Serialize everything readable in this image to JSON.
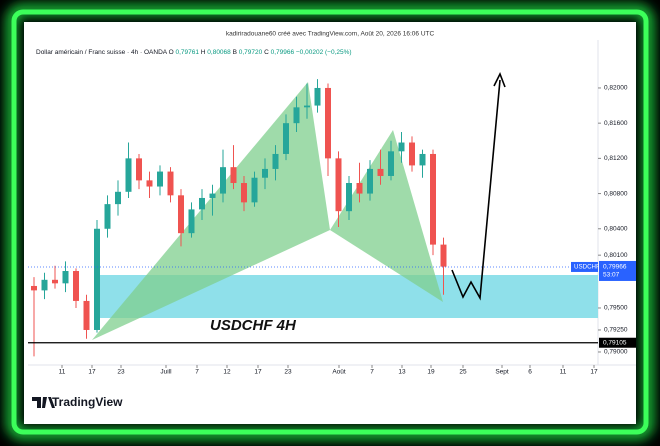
{
  "chart_data": {
    "type": "candlestick",
    "header": "kadiriradouane60 créé avec TradingView.com, Août 20, 2026 16:06 UTC",
    "legend": {
      "symbol": "Dollar américain / Franc suisse · 4h · OANDA",
      "ohlc": [
        {
          "key": "O",
          "value": "0,79761"
        },
        {
          "key": "H",
          "value": "0,80068"
        },
        {
          "key": "B",
          "value": "0,79720"
        },
        {
          "key": "C",
          "value": "0,79966"
        }
      ],
      "change": "−0,00202 (−0,25%)"
    },
    "annotation": "USDCHF 4H",
    "brand": "TradingView",
    "x": [
      0.8,
      2.9,
      5,
      7.1,
      9.2,
      11.3,
      13.4,
      15.5,
      17.6,
      19.7,
      21.8,
      23.9,
      26,
      28.1,
      30.2,
      32.3,
      34.4,
      36.5,
      38.6,
      40.7,
      42.8,
      44.9,
      47,
      49.1,
      51.2,
      53.3,
      55.4,
      57.5,
      59.6,
      61.7,
      63.8,
      65.9,
      68,
      70.1,
      72.2,
      74.3,
      76.4,
      78.5,
      80.6,
      82.7
    ],
    "open": [
      0.7975,
      0.797,
      0.7982,
      0.7978,
      0.7992,
      0.7958,
      0.7925,
      0.804,
      0.8068,
      0.8082,
      0.812,
      0.8095,
      0.8088,
      0.8105,
      0.8078,
      0.8035,
      0.8062,
      0.8075,
      0.808,
      0.811,
      0.8092,
      0.807,
      0.8098,
      0.8108,
      0.8125,
      0.816,
      0.8178,
      0.818,
      0.82,
      0.812,
      0.806,
      0.8092,
      0.808,
      0.8108,
      0.81,
      0.8128,
      0.8138,
      0.8112,
      0.8125,
      0.8022
    ],
    "high": [
      0.7985,
      0.799,
      0.7998,
      0.8003,
      0.7995,
      0.7965,
      0.805,
      0.8078,
      0.8095,
      0.8138,
      0.8125,
      0.8105,
      0.8112,
      0.811,
      0.8085,
      0.807,
      0.8085,
      0.809,
      0.813,
      0.8135,
      0.81,
      0.8105,
      0.812,
      0.8135,
      0.817,
      0.819,
      0.8205,
      0.821,
      0.8205,
      0.8128,
      0.81,
      0.8115,
      0.8118,
      0.813,
      0.814,
      0.815,
      0.8145,
      0.813,
      0.813,
      0.803
    ],
    "low": [
      0.7895,
      0.796,
      0.7972,
      0.7968,
      0.795,
      0.7915,
      0.7922,
      0.803,
      0.8055,
      0.8075,
      0.8085,
      0.8075,
      0.8078,
      0.807,
      0.802,
      0.803,
      0.805,
      0.8055,
      0.807,
      0.8085,
      0.806,
      0.8065,
      0.8085,
      0.8095,
      0.8118,
      0.815,
      0.8165,
      0.8172,
      0.81,
      0.8042,
      0.805,
      0.807,
      0.8072,
      0.809,
      0.8095,
      0.8115,
      0.8105,
      0.8098,
      0.801,
      0.7965
    ],
    "close": [
      0.797,
      0.7982,
      0.7978,
      0.7992,
      0.7958,
      0.7925,
      0.804,
      0.8068,
      0.8082,
      0.812,
      0.8095,
      0.8088,
      0.8105,
      0.8078,
      0.8035,
      0.8062,
      0.8075,
      0.808,
      0.811,
      0.8092,
      0.807,
      0.8098,
      0.8108,
      0.8125,
      0.816,
      0.8178,
      0.818,
      0.82,
      0.812,
      0.806,
      0.8092,
      0.808,
      0.8108,
      0.81,
      0.8128,
      0.8138,
      0.8112,
      0.8125,
      0.8022,
      0.7997
    ],
    "up_color": "#26a69a",
    "down_color": "#ef5350",
    "xlim": [
      0,
      114
    ],
    "xticks": [
      {
        "value": 6.4,
        "label": "11"
      },
      {
        "value": 12.4,
        "label": "17"
      },
      {
        "value": 18.2,
        "label": "23"
      },
      {
        "value": 27.2,
        "label": "Juill"
      },
      {
        "value": 33.4,
        "label": "7"
      },
      {
        "value": 39.4,
        "label": "12"
      },
      {
        "value": 45.6,
        "label": "17"
      },
      {
        "value": 51.6,
        "label": "23"
      },
      {
        "value": 61.8,
        "label": "Août"
      },
      {
        "value": 68.4,
        "label": "7"
      },
      {
        "value": 74.4,
        "label": "13"
      },
      {
        "value": 80.2,
        "label": "19"
      },
      {
        "value": 86.6,
        "label": "25"
      },
      {
        "value": 94.4,
        "label": "Sept"
      },
      {
        "value": 100,
        "label": "6"
      },
      {
        "value": 106.6,
        "label": "11"
      },
      {
        "value": 112.8,
        "label": "17"
      }
    ],
    "ylim": [
      0.78852,
      0.82545
    ],
    "yticks": [
      {
        "value": 0.82,
        "label": "0,82000"
      },
      {
        "value": 0.816,
        "label": "0,81600"
      },
      {
        "value": 0.812,
        "label": "0,81200"
      },
      {
        "value": 0.808,
        "label": "0,80800"
      },
      {
        "value": 0.804,
        "label": "0,80400"
      },
      {
        "value": 0.801,
        "label": "0,80100"
      },
      {
        "value": 0.795,
        "label": "0,79500"
      },
      {
        "value": 0.7925,
        "label": "0,79250"
      },
      {
        "value": 0.79,
        "label": "0,79000"
      }
    ],
    "hline": {
      "value": 0.79105,
      "label": "0,79105"
    },
    "last_price": {
      "value": 0.79966,
      "label": "0,79966",
      "symbol": "USDCHF",
      "countdown": "53:07"
    }
  }
}
